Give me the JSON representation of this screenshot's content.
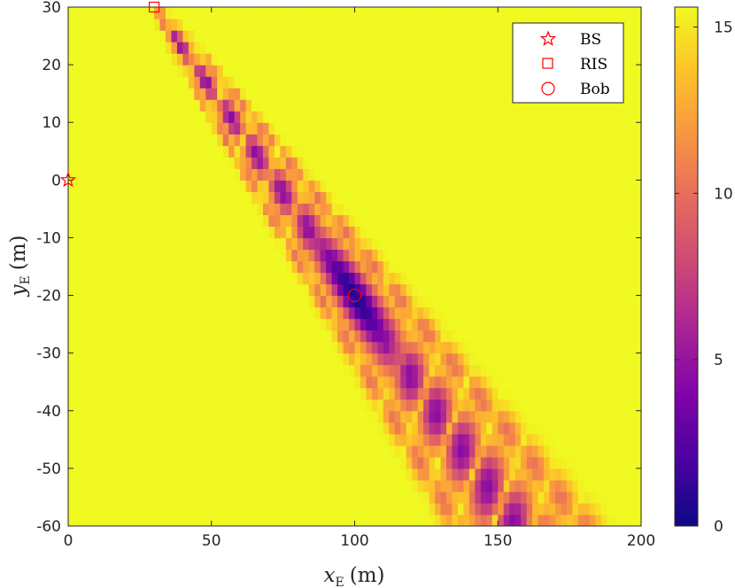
{
  "chart_data": {
    "type": "heatmap",
    "title": "",
    "xlabel": {
      "var": "x",
      "sub": "E",
      "unit": "(m)"
    },
    "ylabel": {
      "var": "y",
      "sub": "E",
      "unit": "(m)"
    },
    "xlim": [
      0,
      200
    ],
    "ylim": [
      -60,
      30
    ],
    "xticks": [
      0,
      50,
      100,
      150,
      200
    ],
    "yticks": [
      30,
      20,
      10,
      0,
      -10,
      -20,
      -30,
      -40,
      -50,
      -60
    ],
    "ytick_labels": [
      "30",
      "20",
      "10",
      "0",
      "-10",
      "-20",
      "-30",
      "-40",
      "-50",
      "-60"
    ],
    "colorbar": {
      "min": 0,
      "max": 15.6,
      "ticks": [
        0,
        5,
        10,
        15
      ],
      "colormap": "plasma"
    },
    "field": {
      "max_value": 15.6,
      "description_of_pattern": "near-field beam focused from RIS toward Bob; deep minimum around Bob with side lobes along the beam line",
      "beam_origin": [
        30,
        30
      ],
      "beam_direction_through": [
        100,
        -20
      ],
      "focus_point": [
        100,
        -20
      ]
    },
    "markers": [
      {
        "name": "BS",
        "x": 0,
        "y": 0,
        "shape": "star",
        "color": "#ff0000"
      },
      {
        "name": "RIS",
        "x": 30,
        "y": 30,
        "shape": "square",
        "color": "#ff0000"
      },
      {
        "name": "Bob",
        "x": 100,
        "y": -20,
        "shape": "circle",
        "color": "#ff0000"
      }
    ],
    "legend": {
      "position": "top-right",
      "entries": [
        "BS",
        "RIS",
        "Bob"
      ]
    }
  }
}
